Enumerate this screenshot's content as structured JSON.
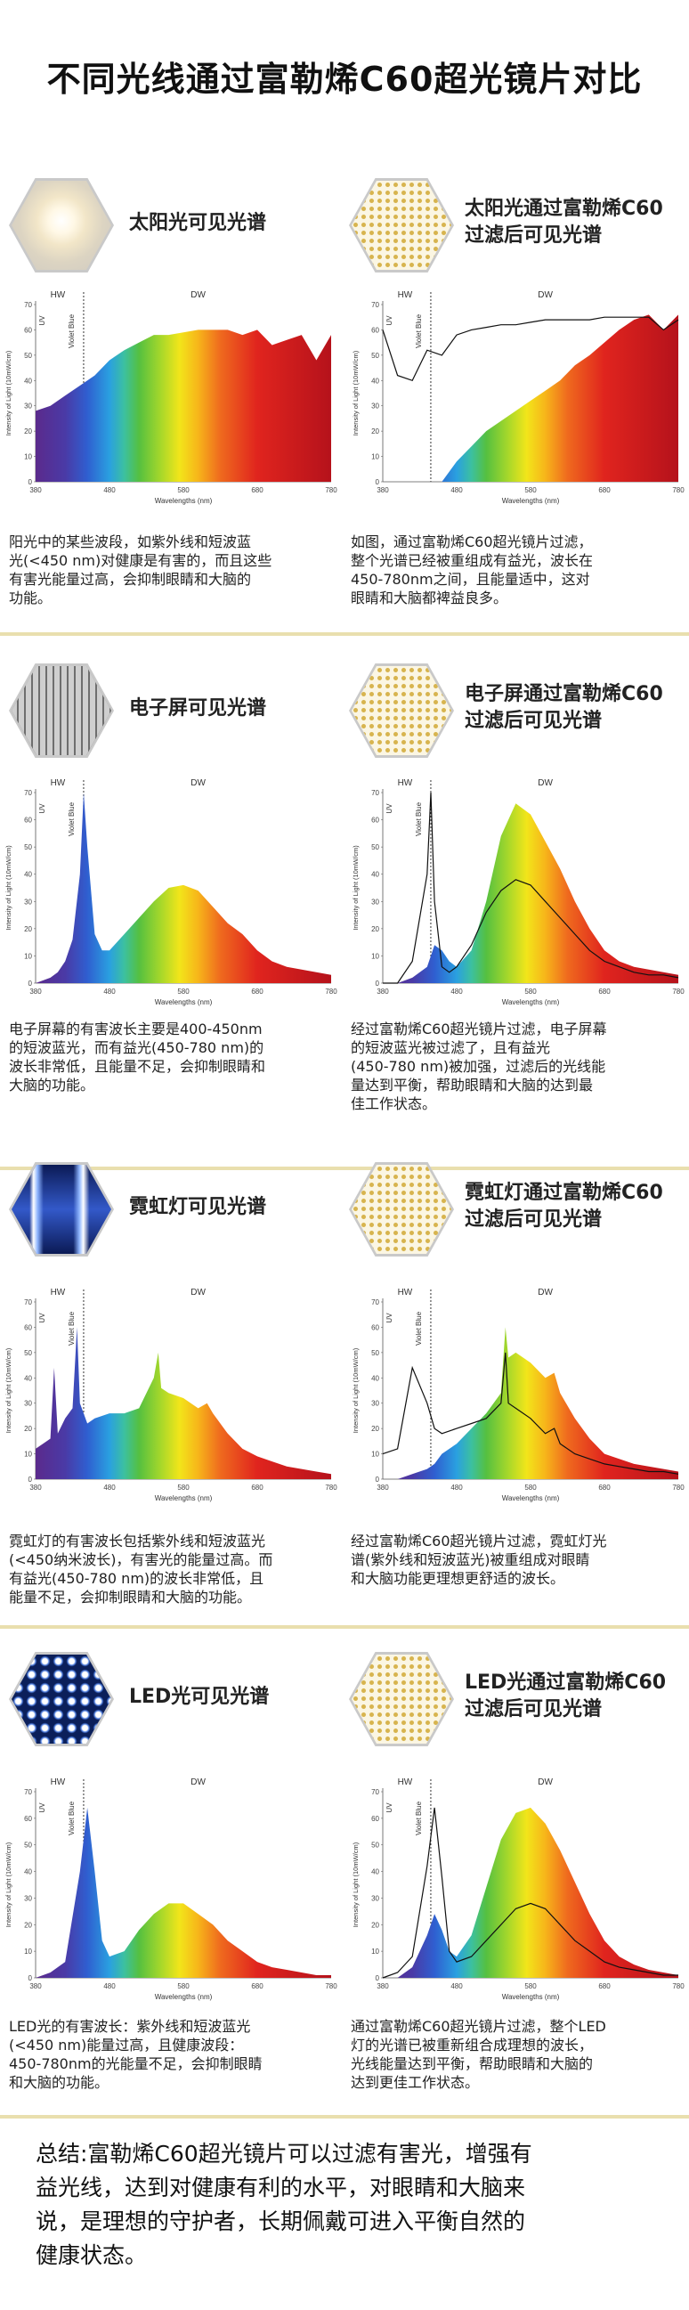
{
  "title": "不同光线通过富勒烯C60超光镜片对比",
  "axis": {
    "hw": "HW",
    "dw": "DW",
    "uv": "UV",
    "violet_blue": "Violet Blue",
    "ylabel": "Intensity of Light (10mW/cm)",
    "xlabel": "Wavelengths (nm)",
    "yticks": [
      "70",
      "60",
      "50",
      "40",
      "30",
      "20",
      "10",
      "0"
    ],
    "xticks": [
      "380",
      "480",
      "580",
      "680",
      "780"
    ],
    "xticks_led_right": [
      "380",
      "480",
      "580",
      "680",
      "780"
    ]
  },
  "sections": [
    {
      "left_title_1": "太阳光可见光谱",
      "left_title_2": "",
      "right_title_1": "太阳光通过富勒烯C60",
      "right_title_2": "过滤后可见光谱",
      "left_desc": [
        "阳光中的某些波段，如紫外线和短波蓝",
        "光(<450 nm)对健康是有害的，而且这些",
        "有害光能量过高，会抑制眼睛和大脑的",
        "功能。"
      ],
      "right_desc": [
        "如图，通过富勒烯C60超光镜片过滤，",
        "整个光谱已经被重组成有益光，波长在",
        "450-780nm之间，且能量适中，这对",
        "眼睛和大脑都裨益良多。"
      ]
    },
    {
      "left_title_1": "电子屏可见光谱",
      "left_title_2": "",
      "right_title_1": "电子屏通过富勒烯C60",
      "right_title_2": "过滤后可见光谱",
      "left_desc": [
        "电子屏幕的有害波长主要是400-450nm",
        "的短波蓝光，而有益光(450-780 nm)的",
        "波长非常低，且能量不足，会抑制眼睛和",
        "大脑的功能。"
      ],
      "right_desc": [
        "经过富勒烯C60超光镜片过滤，电子屏幕",
        "的短波蓝光被过滤了，且有益光",
        "(450-780 nm)被加强，过滤后的光线能",
        "量达到平衡，帮助眼睛和大脑的达到最",
        "佳工作状态。"
      ]
    },
    {
      "left_title_1": "霓虹灯可见光谱",
      "left_title_2": "",
      "right_title_1": "霓虹灯通过富勒烯C60",
      "right_title_2": "过滤后可见光谱",
      "left_desc": [
        "霓虹灯的有害波长包括紫外线和短波蓝光",
        "(<450纳米波长)，有害光的能量过高。而",
        "有益光(450-780 nm)的波长非常低，且",
        "能量不足，会抑制眼睛和大脑的功能。"
      ],
      "right_desc": [
        "经过富勒烯C60超光镜片过滤，霓虹灯光",
        "谱(紫外线和短波蓝光)被重组成对眼睛",
        "和大脑功能更理想更舒适的波长。"
      ]
    },
    {
      "left_title_1": "LED光可见光谱",
      "left_title_2": "",
      "right_title_1": "LED光通过富勒烯C60",
      "right_title_2": "过滤后可见光谱",
      "left_desc": [
        "LED光的有害波长：紫外线和短波蓝光",
        "(<450 nm)能量过高，且健康波段：",
        "450-780nm的光能量不足，会抑制眼睛",
        "和大脑的功能。"
      ],
      "right_desc": [
        "通过富勒烯C60超光镜片过滤，整个LED",
        "灯的光谱已被重新组合成理想的波长，",
        "光线能量达到平衡，帮助眼睛和大脑的",
        "达到更佳工作状态。"
      ]
    }
  ],
  "summary": [
    "总结:富勒烯C60超光镜片可以过滤有害光，增强有",
    "益光线，达到对健康有利的水平，对眼睛和大脑来",
    "说，是理想的守护者，长期佩戴可进入平衡自然的",
    "健康状态。"
  ],
  "chart_data": [
    {
      "type": "area",
      "x": [
        380,
        400,
        420,
        440,
        460,
        480,
        500,
        520,
        540,
        560,
        580,
        600,
        620,
        640,
        660,
        680,
        700,
        720,
        740,
        760,
        780
      ],
      "series": [
        {
          "values": [
            28,
            30,
            34,
            38,
            42,
            48,
            52,
            55,
            58,
            58,
            59,
            60,
            60,
            60,
            58,
            60,
            54,
            56,
            58,
            48,
            58
          ]
        }
      ],
      "xlabel": "Wavelengths (nm)",
      "ylabel": "Intensity of Light (10mW/cm)",
      "ylim": [
        0,
        70
      ],
      "xlim": [
        380,
        780
      ]
    },
    {
      "type": "area",
      "x": [
        380,
        400,
        420,
        440,
        460,
        480,
        500,
        520,
        540,
        560,
        580,
        600,
        620,
        640,
        660,
        680,
        700,
        720,
        740,
        760,
        780
      ],
      "series": [
        {
          "values": [
            0,
            0,
            0,
            0,
            0,
            8,
            14,
            20,
            24,
            28,
            32,
            36,
            40,
            46,
            50,
            55,
            60,
            64,
            66,
            60,
            66
          ]
        },
        {
          "values": [
            60,
            42,
            40,
            52,
            50,
            58,
            60,
            61,
            62,
            62,
            63,
            64,
            64,
            64,
            64,
            65,
            65,
            65,
            65,
            60,
            64
          ]
        }
      ],
      "xlabel": "Wavelengths (nm)",
      "ylabel": "Intensity of Light (10mW/cm)",
      "ylim": [
        0,
        70
      ],
      "xlim": [
        380,
        780
      ]
    },
    {
      "type": "area",
      "x": [
        380,
        400,
        410,
        420,
        430,
        440,
        445,
        450,
        460,
        470,
        480,
        500,
        520,
        540,
        560,
        580,
        600,
        620,
        640,
        660,
        680,
        700,
        720,
        740,
        760,
        780
      ],
      "series": [
        {
          "values": [
            0,
            2,
            4,
            8,
            16,
            40,
            70,
            50,
            18,
            12,
            12,
            18,
            24,
            30,
            35,
            36,
            34,
            28,
            22,
            18,
            12,
            8,
            6,
            5,
            4,
            3
          ]
        }
      ],
      "xlabel": "Wavelengths (nm)",
      "ylabel": "Intensity of Light (10mW/cm)",
      "ylim": [
        0,
        70
      ],
      "xlim": [
        380,
        780
      ]
    },
    {
      "type": "area",
      "x": [
        380,
        400,
        420,
        440,
        445,
        450,
        460,
        470,
        480,
        500,
        520,
        540,
        560,
        580,
        600,
        620,
        640,
        660,
        680,
        700,
        720,
        740,
        760,
        780
      ],
      "series": [
        {
          "values": [
            0,
            0,
            2,
            6,
            10,
            14,
            12,
            8,
            6,
            12,
            30,
            54,
            66,
            62,
            52,
            42,
            30,
            20,
            12,
            8,
            6,
            5,
            4,
            3
          ]
        },
        {
          "values": [
            0,
            0,
            8,
            40,
            70,
            30,
            6,
            4,
            6,
            14,
            26,
            34,
            38,
            36,
            30,
            24,
            18,
            12,
            8,
            6,
            4,
            3,
            3,
            2
          ]
        }
      ],
      "xlabel": "Wavelengths (nm)",
      "ylabel": "Intensity of Light (10mW/cm)",
      "ylim": [
        0,
        70
      ],
      "xlim": [
        380,
        780
      ]
    },
    {
      "type": "area",
      "x": [
        380,
        390,
        400,
        405,
        410,
        420,
        430,
        436,
        440,
        450,
        460,
        480,
        500,
        520,
        540,
        546,
        550,
        560,
        580,
        600,
        612,
        620,
        640,
        660,
        680,
        700,
        720,
        740,
        760,
        780
      ],
      "series": [
        {
          "values": [
            12,
            14,
            16,
            44,
            18,
            24,
            28,
            60,
            30,
            22,
            24,
            26,
            26,
            28,
            40,
            50,
            36,
            34,
            32,
            28,
            30,
            26,
            18,
            12,
            9,
            7,
            5,
            4,
            3,
            2
          ]
        }
      ],
      "xlabel": "Wavelengths (nm)",
      "ylabel": "Intensity of Light (10mW/cm)",
      "ylim": [
        0,
        70
      ],
      "xlim": [
        380,
        780
      ]
    },
    {
      "type": "area",
      "x": [
        380,
        400,
        420,
        440,
        450,
        460,
        480,
        500,
        520,
        540,
        546,
        550,
        560,
        580,
        600,
        612,
        620,
        640,
        660,
        680,
        700,
        720,
        740,
        760,
        780
      ],
      "series": [
        {
          "values": [
            0,
            0,
            2,
            4,
            6,
            10,
            14,
            20,
            26,
            34,
            60,
            48,
            50,
            46,
            40,
            42,
            34,
            24,
            16,
            10,
            8,
            6,
            5,
            4,
            3
          ]
        },
        {
          "values": [
            10,
            12,
            44,
            30,
            20,
            18,
            20,
            22,
            24,
            30,
            50,
            30,
            28,
            24,
            18,
            20,
            14,
            10,
            8,
            6,
            5,
            4,
            3,
            3,
            2
          ]
        }
      ],
      "xlabel": "Wavelengths (nm)",
      "ylabel": "Intensity of Light (10mW/cm)",
      "ylim": [
        0,
        70
      ],
      "xlim": [
        380,
        780
      ]
    },
    {
      "type": "area",
      "x": [
        380,
        400,
        420,
        440,
        450,
        460,
        470,
        480,
        500,
        520,
        540,
        560,
        580,
        600,
        620,
        640,
        660,
        680,
        700,
        720,
        740,
        760,
        780
      ],
      "series": [
        {
          "values": [
            0,
            2,
            6,
            40,
            64,
            40,
            14,
            8,
            10,
            18,
            24,
            28,
            28,
            24,
            20,
            14,
            10,
            6,
            4,
            3,
            2,
            1,
            1
          ]
        }
      ],
      "xlabel": "Wavelengths (nm)",
      "ylabel": "Intensity of Light (10mW/cm)",
      "ylim": [
        0,
        70
      ],
      "xlim": [
        380,
        780
      ]
    },
    {
      "type": "area",
      "x": [
        380,
        400,
        420,
        440,
        450,
        460,
        470,
        480,
        500,
        520,
        540,
        560,
        580,
        600,
        620,
        640,
        660,
        680,
        700,
        720,
        740,
        760,
        780
      ],
      "series": [
        {
          "values": [
            0,
            0,
            4,
            16,
            24,
            18,
            10,
            8,
            16,
            34,
            52,
            62,
            64,
            58,
            48,
            36,
            24,
            14,
            8,
            5,
            3,
            2,
            1
          ]
        },
        {
          "values": [
            0,
            2,
            8,
            42,
            64,
            38,
            10,
            6,
            8,
            14,
            20,
            26,
            28,
            26,
            20,
            14,
            10,
            6,
            4,
            3,
            2,
            1,
            1
          ]
        }
      ],
      "xlabel": "Wavelengths (nm)",
      "ylabel": "Intensity of Light (10mW/cm)",
      "ylim": [
        0,
        70
      ],
      "xlim": [
        380,
        780
      ]
    }
  ]
}
